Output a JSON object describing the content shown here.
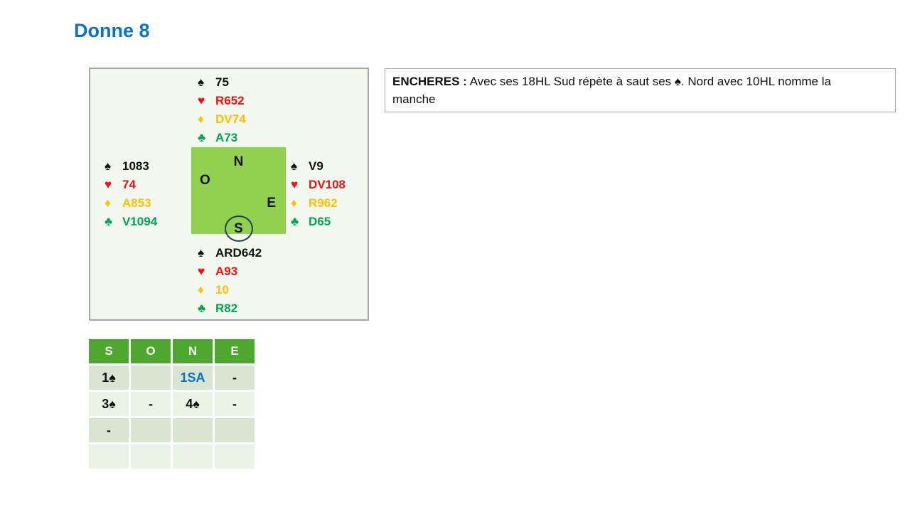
{
  "title": "Donne 8",
  "suits": {
    "spade": "♠",
    "heart": "♥",
    "diamond": "♦",
    "club": "♣"
  },
  "compass": {
    "north": "N",
    "west": "O",
    "east": "E",
    "south": "S"
  },
  "deal": {
    "north": {
      "spades": "75",
      "hearts": "R652",
      "diamonds": "DV74",
      "clubs": "A73"
    },
    "west": {
      "spades": "1083",
      "hearts": "74",
      "diamonds": "A853",
      "clubs": "V1094"
    },
    "east": {
      "spades": "V9",
      "hearts": "DV108",
      "diamonds": "R962",
      "clubs": "D65"
    },
    "south": {
      "spades": "ARD642",
      "hearts": "A93",
      "diamonds": "10",
      "clubs": "R82"
    }
  },
  "bidding": {
    "headers": [
      "S",
      "O",
      "N",
      "E"
    ],
    "rows": [
      [
        "1♠",
        "",
        "1SA",
        "-"
      ],
      [
        "3♠",
        "-",
        "4♠",
        "-"
      ],
      [
        "-",
        "",
        "",
        ""
      ],
      [
        "",
        "",
        "",
        ""
      ]
    ]
  },
  "commentary": {
    "label": "ENCHERES :",
    "text": " Avec ses 18HL Sud répète à saut ses ♠. Nord avec 10HL nomme la manche"
  },
  "colors": {
    "title_blue": "#0b72c5",
    "heart_red": "#ee1111",
    "diamond_gold": "#ffc000",
    "club_green": "#00a651",
    "compass_green": "#92d050",
    "table_header_green": "#4ea72e",
    "bid_blue": "#0d6fc8",
    "diagram_bg": "#f2f8ef"
  }
}
